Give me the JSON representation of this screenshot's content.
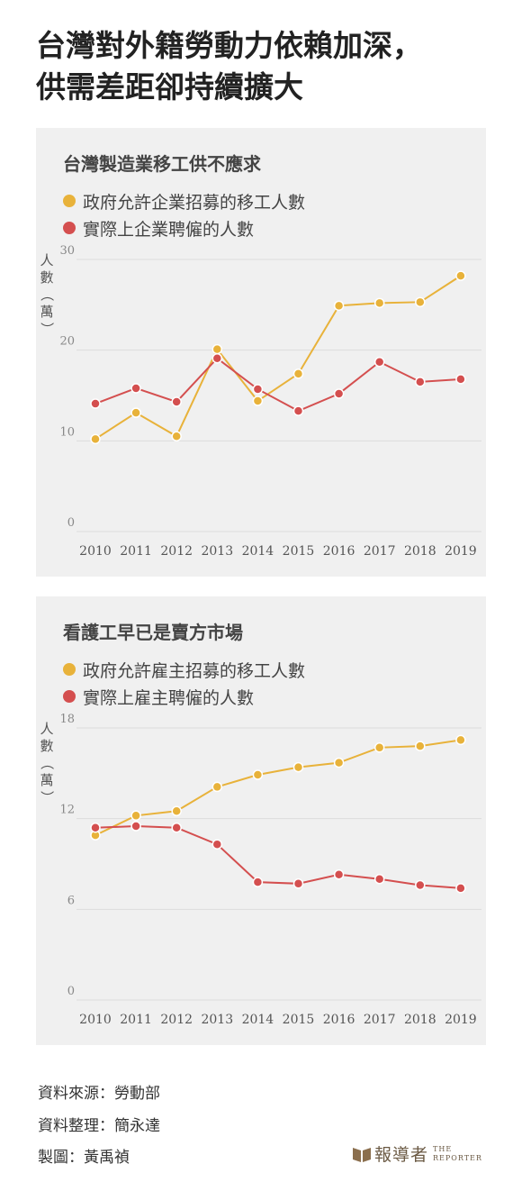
{
  "headline": {
    "line1": "台灣對外籍勞動力依賴加深，",
    "line2": "供需差距卻持續擴大"
  },
  "colors": {
    "yellow": "#e8b23a",
    "red": "#d44f4f",
    "panel": "#f0f0f0"
  },
  "chart_data": [
    {
      "type": "line",
      "title": "台灣製造業移工供不應求",
      "ylabel": "人數（萬）",
      "x": [
        "2010",
        "2011",
        "2012",
        "2013",
        "2014",
        "2015",
        "2016",
        "2017",
        "2018",
        "2019"
      ],
      "ylim": [
        0,
        30
      ],
      "yticks": [
        "0",
        "10",
        "20",
        "30"
      ],
      "grid": true,
      "legend_position": "top-left",
      "series": [
        {
          "name": "政府允許企業招募的移工人數",
          "color": "#e8b23a",
          "values": [
            10.2,
            13.1,
            10.5,
            20.1,
            14.4,
            17.4,
            24.9,
            25.2,
            25.3,
            28.2
          ]
        },
        {
          "name": "實際上企業聘僱的人數",
          "color": "#d44f4f",
          "values": [
            14.1,
            15.8,
            14.3,
            19.1,
            15.7,
            13.3,
            15.2,
            18.7,
            16.5,
            16.8
          ]
        }
      ]
    },
    {
      "type": "line",
      "title": "看護工早已是賣方市場",
      "ylabel": "人數（萬）",
      "x": [
        "2010",
        "2011",
        "2012",
        "2013",
        "2014",
        "2015",
        "2016",
        "2017",
        "2018",
        "2019"
      ],
      "ylim": [
        0,
        18
      ],
      "yticks": [
        "0",
        "6",
        "12",
        "18"
      ],
      "grid": true,
      "legend_position": "top-left",
      "series": [
        {
          "name": "政府允許雇主招募的移工人數",
          "color": "#e8b23a",
          "values": [
            10.9,
            12.2,
            12.5,
            14.1,
            14.9,
            15.4,
            15.7,
            16.7,
            16.8,
            17.2
          ]
        },
        {
          "name": "實際上雇主聘僱的人數",
          "color": "#d44f4f",
          "values": [
            11.4,
            11.5,
            11.4,
            10.3,
            7.8,
            7.7,
            8.3,
            8.0,
            7.6,
            7.4
          ]
        }
      ]
    }
  ],
  "footer": {
    "source": "資料來源：勞動部",
    "compiled": "資料整理：簡永達",
    "graphic": "製圖：黃禹禎"
  },
  "logo": {
    "cn": "報導者",
    "en1": "THE",
    "en2": "REPORTER",
    "icon": "book-icon"
  }
}
